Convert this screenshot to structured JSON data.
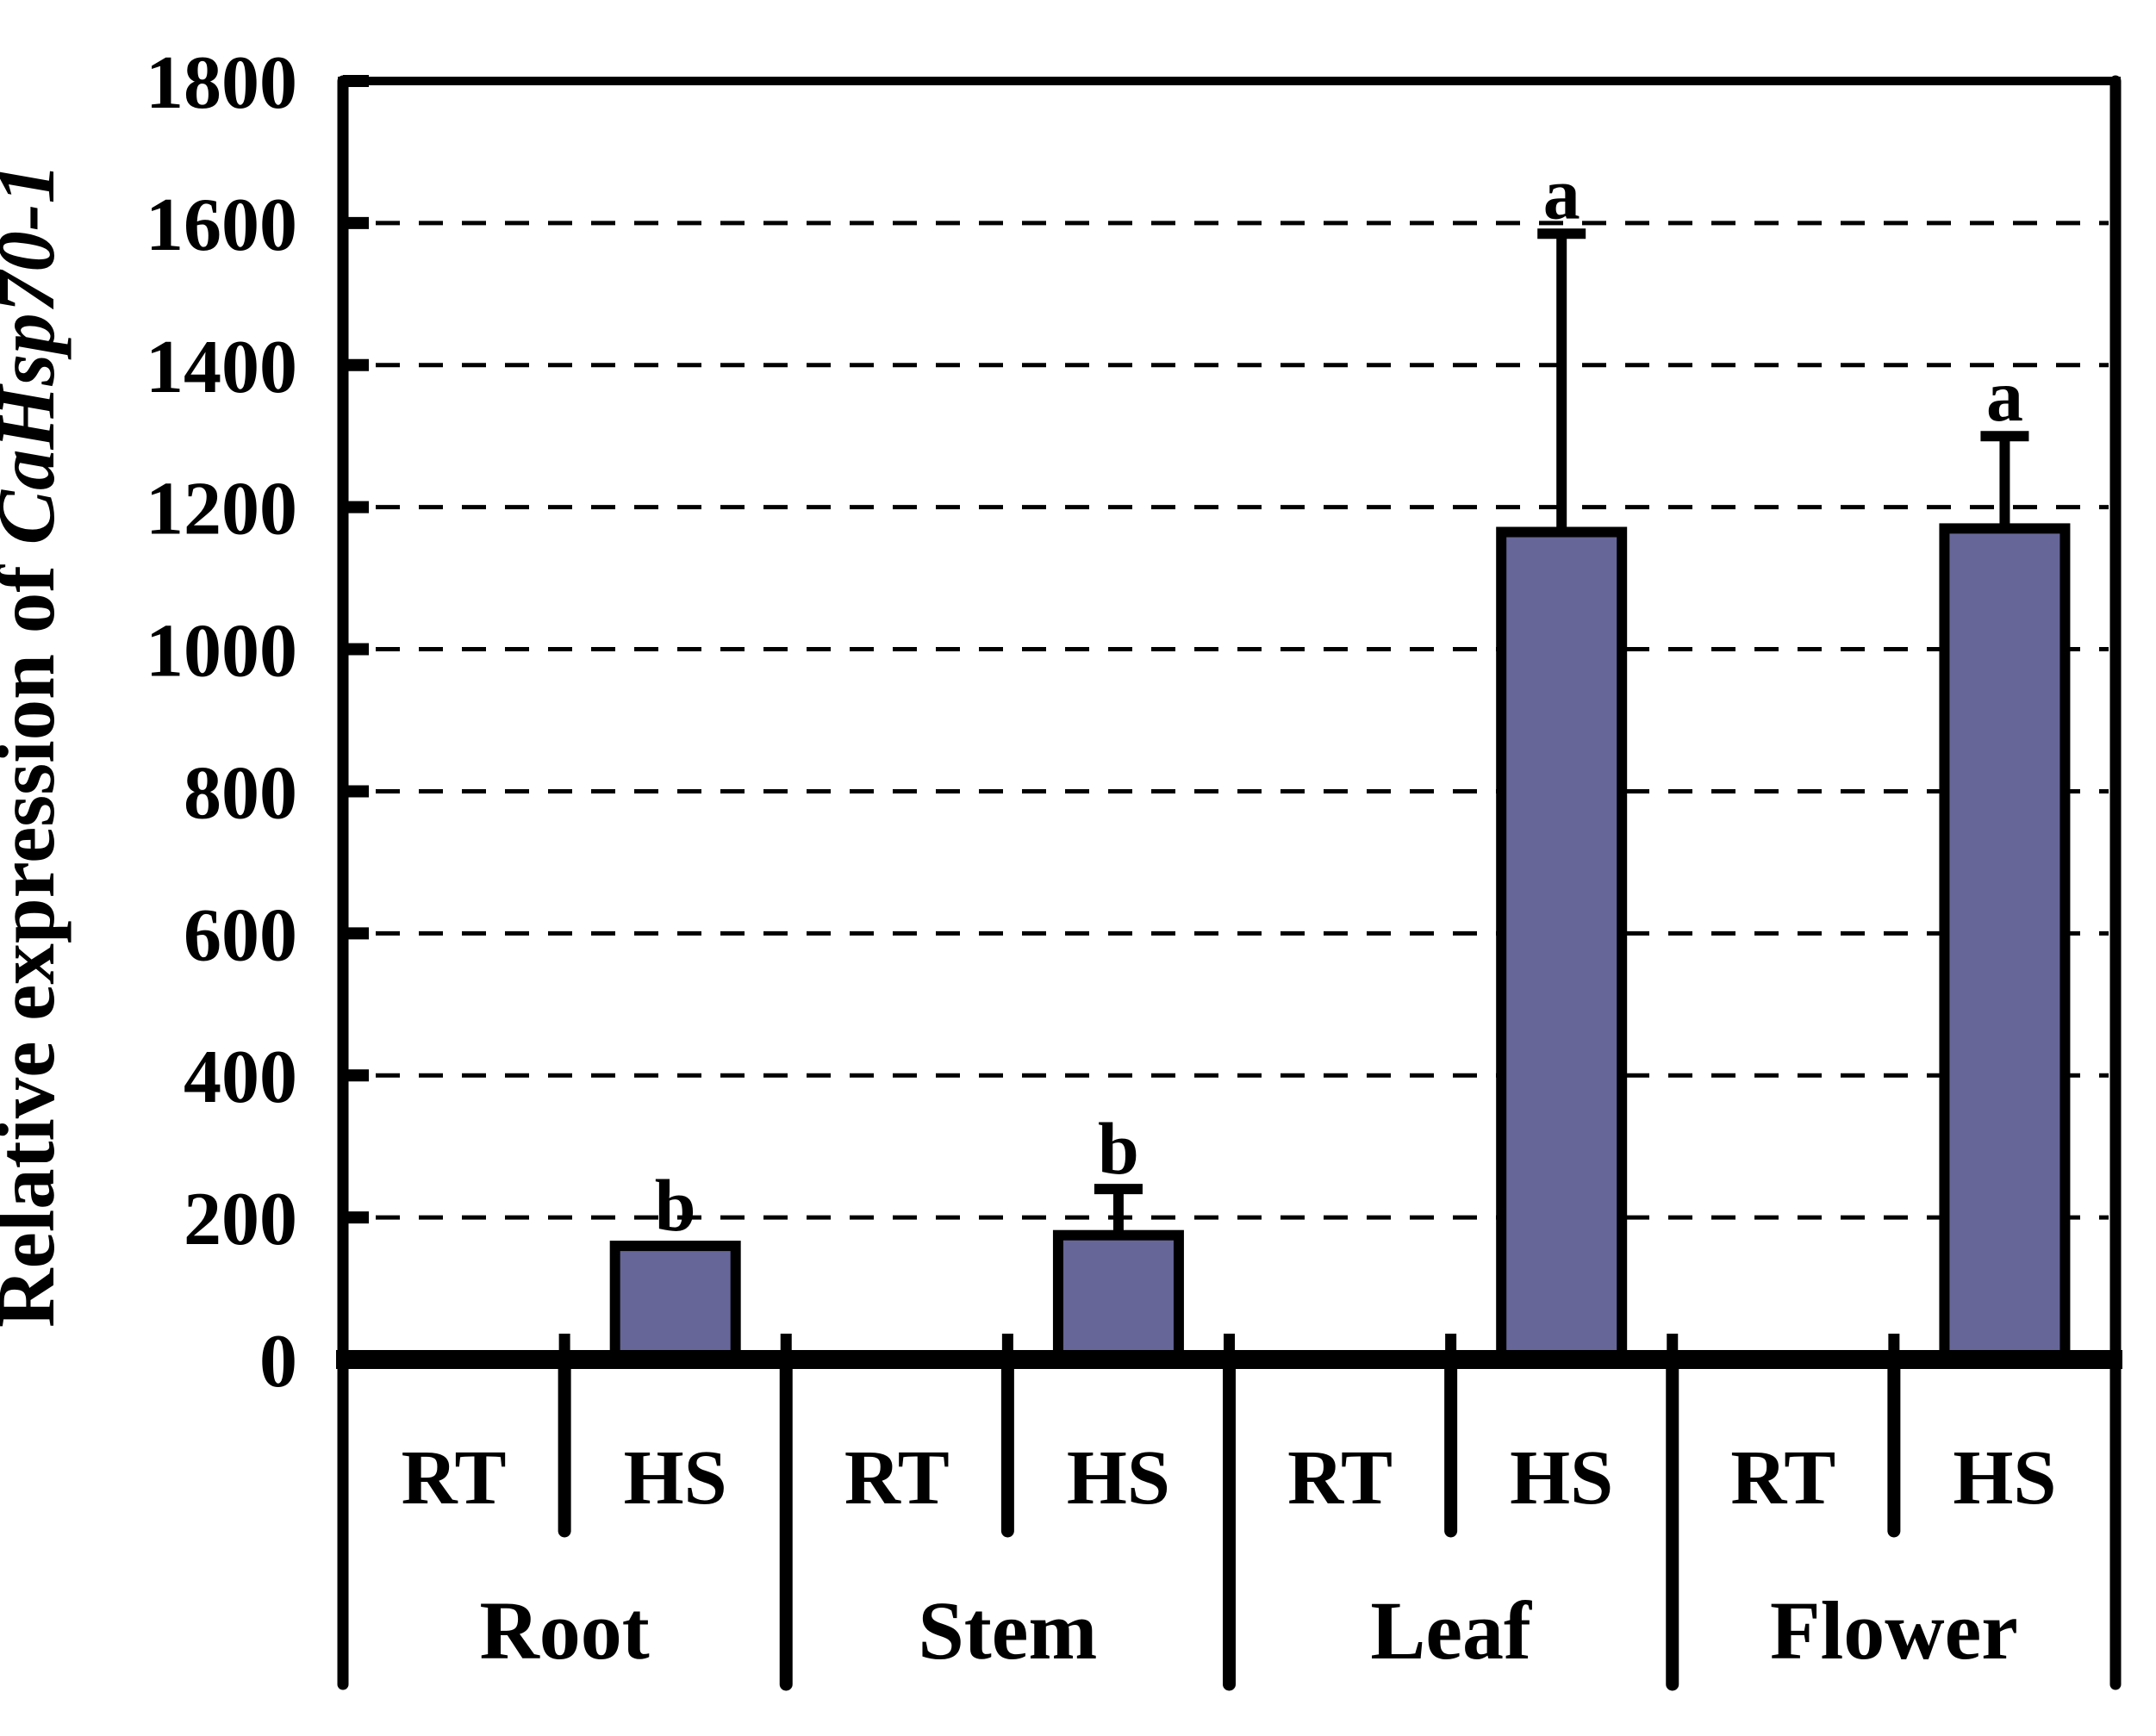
{
  "figure": {
    "background": "#ffffff"
  },
  "chart_data": {
    "type": "bar",
    "title": "",
    "ylabel": {
      "regular": "Relative expression of ",
      "italic": "CaHsp70-1"
    },
    "y_axis": {
      "min": 0,
      "max": 1800,
      "tick_step": 200,
      "ticks": [
        0,
        200,
        400,
        600,
        800,
        1000,
        1200,
        1400,
        1600,
        1800
      ],
      "tick_labels": [
        "0",
        "200",
        "400",
        "600",
        "800",
        "1000",
        "1200",
        "1400",
        "1600",
        "1800"
      ]
    },
    "gridlines": {
      "style": "dashed",
      "orientation": "horizontal",
      "values": [
        200,
        400,
        600,
        800,
        1000,
        1200,
        1400,
        1600
      ]
    },
    "legend": "none",
    "groups": [
      {
        "label": "Root",
        "conditions": [
          {
            "label": "RT",
            "value": 0,
            "error_up": 0,
            "letter": ""
          },
          {
            "label": "HS",
            "value": 160,
            "error_up": 0,
            "letter": "b"
          }
        ]
      },
      {
        "label": "Stem",
        "conditions": [
          {
            "label": "RT",
            "value": 0,
            "error_up": 0,
            "letter": ""
          },
          {
            "label": "HS",
            "value": 175,
            "error_up": 65,
            "letter": "b"
          }
        ]
      },
      {
        "label": "Leaf",
        "conditions": [
          {
            "label": "RT",
            "value": 0,
            "error_up": 0,
            "letter": ""
          },
          {
            "label": "HS",
            "value": 1165,
            "error_up": 420,
            "letter": "a"
          }
        ]
      },
      {
        "label": "Flower",
        "conditions": [
          {
            "label": "RT",
            "value": 0,
            "error_up": 0,
            "letter": ""
          },
          {
            "label": "HS",
            "value": 1170,
            "error_up": 130,
            "letter": "a"
          }
        ]
      }
    ],
    "colors": {
      "bar_fill": "#666699",
      "bar_border": "#000000",
      "axis": "#000000",
      "grid": "#000000",
      "text": "#000000"
    }
  }
}
